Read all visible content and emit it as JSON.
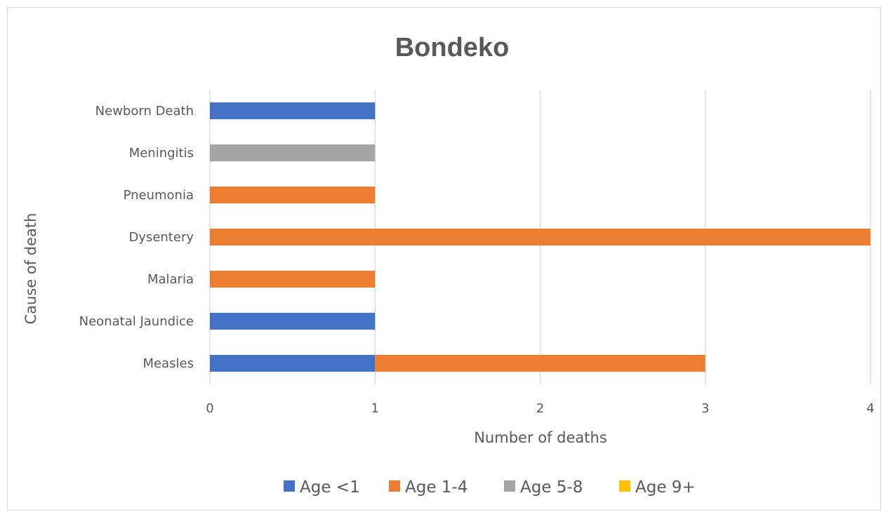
{
  "chart_data": {
    "type": "bar",
    "orientation": "horizontal",
    "stacked": true,
    "title": "Bondeko",
    "xlabel": "Number of deaths",
    "ylabel": "Cause of death",
    "xlim": [
      0,
      4
    ],
    "xticks": [
      "0",
      "1",
      "2",
      "3",
      "4"
    ],
    "grid": true,
    "legend_position": "bottom",
    "categories": [
      "Newborn Death",
      "Meningitis",
      "Pneumonia",
      "Dysentery",
      "Malaria",
      "Neonatal Jaundice",
      "Measles"
    ],
    "series": [
      {
        "name": "Age <1",
        "color": "#4472C4",
        "values": [
          1,
          0,
          0,
          0,
          0,
          1,
          1
        ]
      },
      {
        "name": "Age 1-4",
        "color": "#ED7D31",
        "values": [
          0,
          0,
          1,
          4,
          1,
          0,
          2
        ]
      },
      {
        "name": "Age 5-8",
        "color": "#A5A5A5",
        "values": [
          0,
          1,
          0,
          0,
          0,
          0,
          0
        ]
      },
      {
        "name": "Age 9+",
        "color": "#FFC000",
        "values": [
          0,
          0,
          0,
          0,
          0,
          0,
          0
        ]
      }
    ]
  }
}
